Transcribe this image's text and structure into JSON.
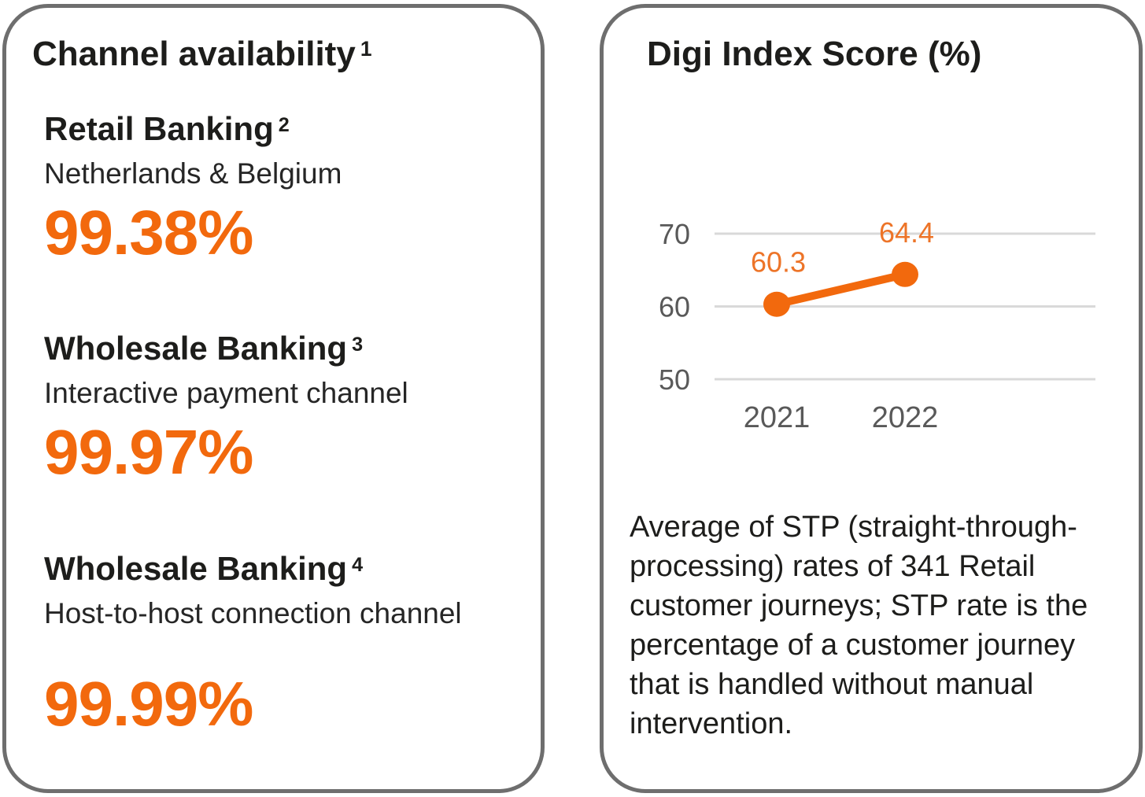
{
  "cards": {
    "channel": {
      "title": "Channel availability",
      "title_sup": "1",
      "sections": [
        {
          "heading": "Retail Banking",
          "sup": "2",
          "subtitle": "Netherlands & Belgium",
          "value": "99.38%"
        },
        {
          "heading": "Wholesale Banking",
          "sup": "3",
          "subtitle": "Interactive payment channel",
          "value": "99.97%"
        },
        {
          "heading": "Wholesale Banking",
          "sup": "4",
          "subtitle": "Host-to-host connection channel",
          "value": "99.99%"
        }
      ]
    },
    "digi": {
      "title": "Digi Index Score (%)",
      "note": "Average of STP (straight-through-processing) rates of 341 Retail customer journeys; STP rate is the percentage of a customer journey that is handled without manual intervention."
    }
  },
  "chart_data": {
    "type": "line",
    "title": "Digi Index Score (%)",
    "categories": [
      "2021",
      "2022"
    ],
    "values": [
      60.3,
      64.4
    ],
    "value_labels": [
      "60.3",
      "64.4"
    ],
    "y_ticks": [
      70,
      60,
      50
    ],
    "ylim": [
      45,
      72
    ],
    "grid": true,
    "legend": "none",
    "line_color": "#f2690d",
    "point_color": "#f2690d",
    "value_label_color": "#ed7428",
    "axis_label_color": "#595959",
    "gridline_color": "#d9d9d9"
  },
  "colors": {
    "accent_orange": "#f2690d",
    "card_border": "#6e6e6e",
    "text": "#1d1d1b"
  }
}
